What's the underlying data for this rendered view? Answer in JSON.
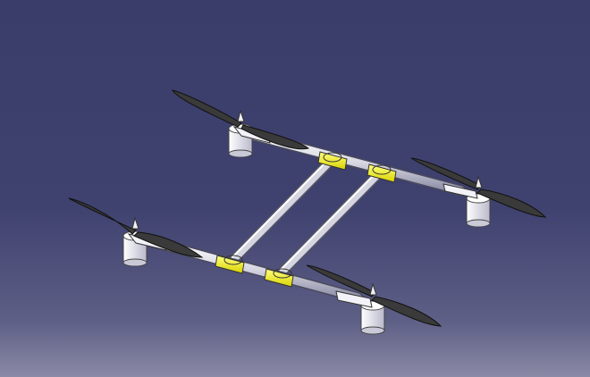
{
  "viewport": {
    "background_top": "#3a3c6a",
    "background_bottom": "#8a89a6"
  },
  "model": {
    "arm_color": "#dcdce8",
    "clamp_color": "#f5f000",
    "blade_color": "#3a3a3a",
    "motor_color": "#e6e6f0",
    "parts": {
      "propellers": 4,
      "motors": 4,
      "arms": 2,
      "cross_tubes": 2,
      "clamps": 4
    }
  }
}
